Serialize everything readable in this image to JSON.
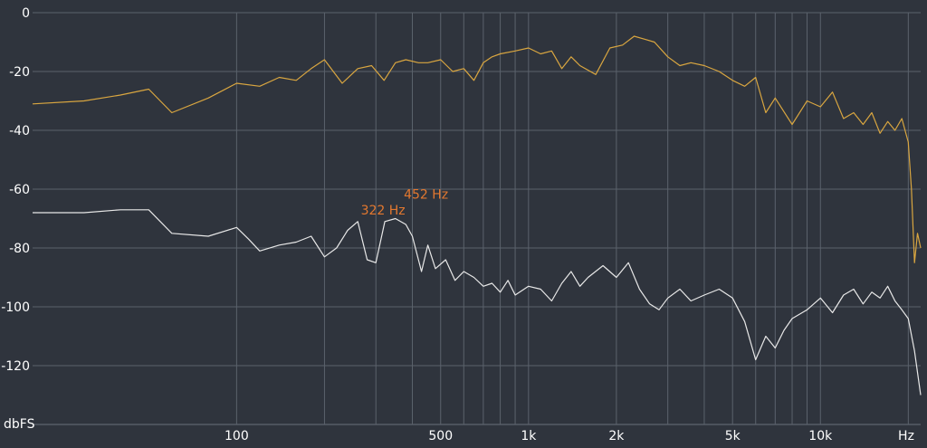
{
  "chart_data": {
    "type": "line",
    "title": "",
    "xlabel": "Hz",
    "ylabel": "dbFS",
    "x_scale": "log",
    "xlim": [
      20,
      22050
    ],
    "ylim": [
      -140,
      0
    ],
    "grid": true,
    "y_ticks": [
      {
        "value": 0,
        "label": "0"
      },
      {
        "value": -20,
        "label": "-20"
      },
      {
        "value": -40,
        "label": "-40"
      },
      {
        "value": -60,
        "label": "-60"
      },
      {
        "value": -80,
        "label": "-80"
      },
      {
        "value": -100,
        "label": "-100"
      },
      {
        "value": -120,
        "label": "-120"
      }
    ],
    "x_tick_labels": [
      {
        "value": 100,
        "label": "100"
      },
      {
        "value": 500,
        "label": "500"
      },
      {
        "value": 1000,
        "label": "1k"
      },
      {
        "value": 2000,
        "label": "2k"
      },
      {
        "value": 5000,
        "label": "5k"
      },
      {
        "value": 10000,
        "label": "10k"
      }
    ],
    "x_gridlines": [
      100,
      200,
      300,
      400,
      500,
      600,
      700,
      800,
      900,
      1000,
      2000,
      3000,
      4000,
      5000,
      6000,
      7000,
      8000,
      9000,
      10000,
      20000
    ],
    "series": [
      {
        "color": "#d9a640",
        "x": [
          20,
          30,
          40,
          50,
          60,
          80,
          100,
          120,
          140,
          160,
          180,
          200,
          230,
          260,
          290,
          320,
          350,
          380,
          420,
          452,
          500,
          550,
          600,
          650,
          700,
          750,
          800,
          900,
          1000,
          1100,
          1200,
          1300,
          1400,
          1500,
          1700,
          1900,
          2100,
          2300,
          2500,
          2700,
          3000,
          3300,
          3600,
          4000,
          4500,
          5000,
          5500,
          6000,
          6500,
          7000,
          8000,
          9000,
          10000,
          11000,
          12000,
          13000,
          14000,
          15000,
          16000,
          17000,
          18000,
          19000,
          20000,
          20500,
          21000,
          21500,
          22050
        ],
        "y": [
          -31,
          -30,
          -28,
          -26,
          -34,
          -29,
          -24,
          -25,
          -22,
          -23,
          -19,
          -16,
          -24,
          -19,
          -18,
          -23,
          -17,
          -16,
          -17,
          -17,
          -16,
          -20,
          -19,
          -23,
          -17,
          -15,
          -14,
          -13,
          -12,
          -14,
          -13,
          -19,
          -15,
          -18,
          -21,
          -12,
          -11,
          -8,
          -9,
          -10,
          -15,
          -18,
          -17,
          -18,
          -20,
          -23,
          -25,
          -22,
          -34,
          -29,
          -38,
          -30,
          -32,
          -27,
          -36,
          -34,
          -38,
          -34,
          -41,
          -37,
          -40,
          -36,
          -44,
          -60,
          -85,
          -75,
          -80
        ]
      },
      {
        "color": "#e8e8e8",
        "x": [
          20,
          30,
          40,
          50,
          60,
          80,
          100,
          110,
          120,
          140,
          160,
          180,
          200,
          220,
          240,
          260,
          280,
          300,
          322,
          350,
          380,
          400,
          430,
          452,
          480,
          520,
          560,
          600,
          650,
          700,
          750,
          800,
          850,
          900,
          1000,
          1100,
          1200,
          1300,
          1400,
          1500,
          1600,
          1800,
          2000,
          2200,
          2400,
          2600,
          2800,
          3000,
          3300,
          3600,
          4000,
          4500,
          5000,
          5500,
          6000,
          6500,
          7000,
          7500,
          8000,
          9000,
          10000,
          11000,
          12000,
          13000,
          14000,
          15000,
          16000,
          17000,
          18000,
          19000,
          20000,
          21000,
          22050
        ],
        "y": [
          -68,
          -68,
          -67,
          -67,
          -75,
          -76,
          -73,
          -77,
          -81,
          -79,
          -78,
          -76,
          -83,
          -80,
          -74,
          -71,
          -84,
          -85,
          -71,
          -70,
          -72,
          -76,
          -88,
          -79,
          -87,
          -84,
          -91,
          -88,
          -90,
          -93,
          -92,
          -95,
          -91,
          -96,
          -93,
          -94,
          -98,
          -92,
          -88,
          -93,
          -90,
          -86,
          -90,
          -85,
          -94,
          -99,
          -101,
          -97,
          -94,
          -98,
          -96,
          -94,
          -97,
          -105,
          -118,
          -110,
          -114,
          -108,
          -104,
          -101,
          -97,
          -102,
          -96,
          -94,
          -99,
          -95,
          -97,
          -93,
          -98,
          -101,
          -104,
          -115,
          -130
        ]
      }
    ],
    "annotations": [
      {
        "text": "322 Hz",
        "x": 322,
        "y": -71
      },
      {
        "text": "452 Hz",
        "x": 452,
        "y": -70
      }
    ]
  }
}
